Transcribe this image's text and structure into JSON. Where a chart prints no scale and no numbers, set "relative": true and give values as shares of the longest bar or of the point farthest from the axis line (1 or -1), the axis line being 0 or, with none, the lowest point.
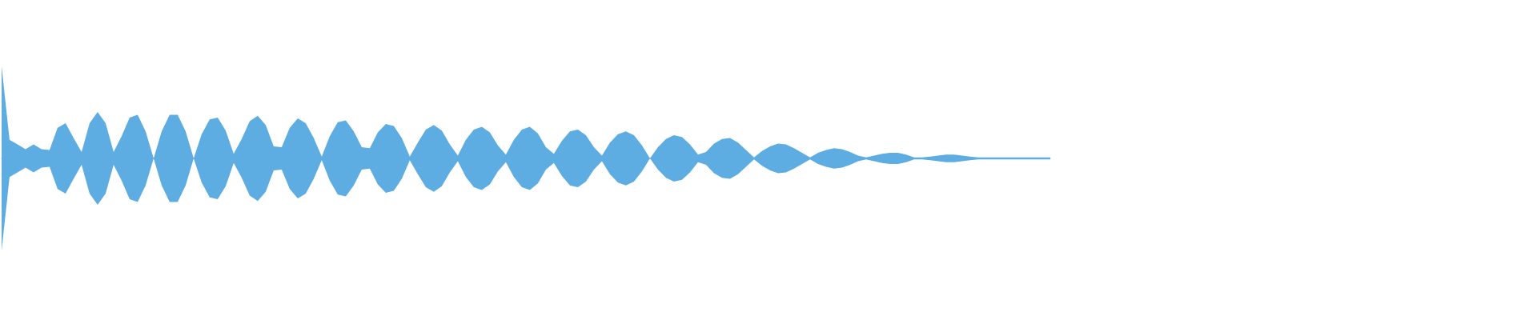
{
  "chart_data": {
    "type": "area",
    "relative": true,
    "categories": [
      null,
      null,
      null,
      null,
      null,
      null,
      null,
      null,
      null,
      null,
      null,
      null,
      null,
      null,
      null,
      null,
      null,
      null,
      null,
      null,
      null,
      null,
      null,
      null,
      null,
      null,
      null,
      null,
      null,
      null,
      null,
      null,
      null,
      null,
      null,
      null,
      null,
      null,
      null,
      null,
      null,
      null,
      null,
      null,
      null,
      null,
      null,
      null,
      null,
      null,
      null,
      null,
      null,
      null,
      null,
      null,
      null,
      null,
      null,
      null,
      null,
      null,
      null,
      null,
      null,
      null,
      null,
      null,
      null,
      null,
      null,
      null,
      null,
      null,
      null,
      null,
      null,
      null,
      null,
      null,
      null,
      null,
      null,
      null,
      null,
      null,
      null,
      null,
      null,
      null,
      null,
      null,
      null,
      null,
      null,
      null,
      null,
      null,
      null,
      null,
      null,
      null,
      null,
      null,
      null,
      null,
      null,
      null,
      null,
      null,
      null,
      null,
      null,
      null,
      null,
      null,
      null,
      null,
      null,
      null,
      null,
      null,
      null,
      null,
      null,
      null,
      null,
      null,
      null,
      null,
      null,
      null
    ],
    "series": [
      {
        "color": "#5dade2",
        "values": [
          1,
          0.2,
          0.15,
          0.1,
          0.15,
          0.1,
          0.09,
          0.33,
          0.38,
          0.22,
          0.07,
          0.38,
          0.5,
          0.38,
          0.07,
          0.24,
          0.44,
          0.47,
          0.29,
          0,
          0.29,
          0.47,
          0.47,
          0.29,
          0,
          0.26,
          0.42,
          0.44,
          0.3,
          0.05,
          0.21,
          0.4,
          0.46,
          0.36,
          0.13,
          0.12,
          0.33,
          0.43,
          0.38,
          0.22,
          0.02,
          0.24,
          0.39,
          0.41,
          0.29,
          0.12,
          0.11,
          0.28,
          0.37,
          0.35,
          0.22,
          0.02,
          0.17,
          0.31,
          0.36,
          0.3,
          0.15,
          0.03,
          0.2,
          0.31,
          0.34,
          0.28,
          0.14,
          0.04,
          0.2,
          0.31,
          0.34,
          0.27,
          0.12,
          0.05,
          0.19,
          0.29,
          0.31,
          0.25,
          0.12,
          0.03,
          0.17,
          0.26,
          0.29,
          0.25,
          0.14,
          0,
          0.12,
          0.21,
          0.25,
          0.23,
          0.15,
          0.04,
          0.07,
          0.16,
          0.21,
          0.22,
          0.17,
          0.09,
          0.01,
          0.08,
          0.13,
          0.16,
          0.15,
          0.11,
          0.06,
          0.01,
          0.06,
          0.09,
          0.11,
          0.1,
          0.07,
          0.03,
          0.01,
          0.03,
          0.05,
          0.06,
          0.06,
          0.04,
          0.01,
          0.01,
          0.02,
          0.03,
          0.04,
          0.04,
          0.03,
          0.02,
          0.01,
          0.01,
          0.01,
          0.01,
          0.01,
          0.01,
          0.01,
          0.01,
          0.01,
          0.01
        ]
      },
      {
        "color": "#5eade2",
        "values": [
          -1,
          -0.2,
          -0.15,
          -0.1,
          -0.15,
          -0.1,
          -0.09,
          -0.33,
          -0.38,
          -0.22,
          -0.07,
          -0.38,
          -0.5,
          -0.38,
          -0.07,
          -0.24,
          -0.44,
          -0.47,
          -0.29,
          0,
          -0.29,
          -0.47,
          -0.47,
          -0.29,
          0,
          -0.26,
          -0.42,
          -0.44,
          -0.3,
          -0.05,
          -0.21,
          -0.4,
          -0.46,
          -0.36,
          -0.13,
          -0.12,
          -0.33,
          -0.43,
          -0.38,
          -0.22,
          -0.02,
          -0.24,
          -0.39,
          -0.41,
          -0.29,
          -0.12,
          -0.11,
          -0.28,
          -0.37,
          -0.35,
          -0.22,
          -0.02,
          -0.17,
          -0.31,
          -0.36,
          -0.3,
          -0.15,
          -0.03,
          -0.2,
          -0.31,
          -0.34,
          -0.28,
          -0.14,
          -0.04,
          -0.2,
          -0.31,
          -0.34,
          -0.27,
          -0.12,
          -0.05,
          -0.19,
          -0.29,
          -0.31,
          -0.25,
          -0.12,
          -0.03,
          -0.17,
          -0.26,
          -0.29,
          -0.25,
          -0.14,
          0,
          -0.12,
          -0.21,
          -0.25,
          -0.23,
          -0.15,
          -0.04,
          -0.07,
          -0.16,
          -0.21,
          -0.22,
          -0.17,
          -0.09,
          -0.01,
          -0.08,
          -0.13,
          -0.16,
          -0.15,
          -0.11,
          -0.06,
          -0.01,
          -0.06,
          -0.09,
          -0.11,
          -0.1,
          -0.07,
          -0.03,
          -0.01,
          -0.03,
          -0.05,
          -0.06,
          -0.06,
          -0.04,
          -0.01,
          -0.01,
          -0.02,
          -0.03,
          -0.04,
          -0.04,
          -0.03,
          -0.02,
          -0.01,
          -0.01,
          -0.01,
          -0.01,
          -0.01,
          -0.01,
          -0.01,
          -0.01,
          -0.01,
          -0.01
        ]
      }
    ]
  }
}
